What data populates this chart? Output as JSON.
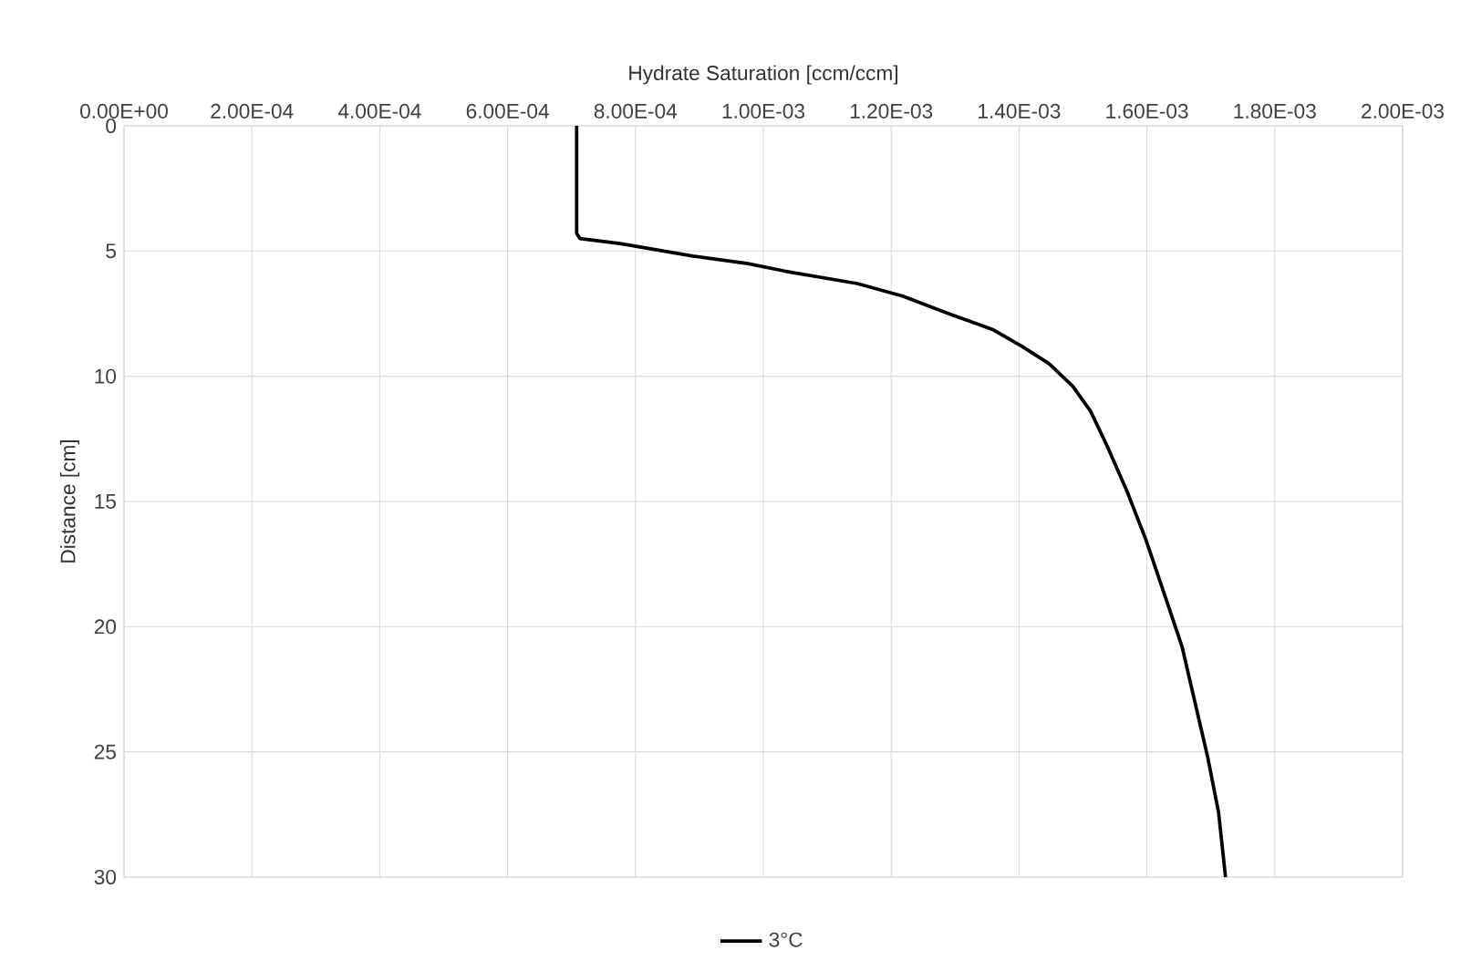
{
  "chart_data": {
    "type": "line",
    "xlabel": "Hydrate Saturation [ccm/ccm]",
    "ylabel": "Distance [cm]",
    "xlim": [
      0,
      0.002
    ],
    "ylim": [
      30,
      0
    ],
    "xticks": [
      {
        "value": 0,
        "label": "0.00E+00"
      },
      {
        "value": 0.0002,
        "label": "2.00E-04"
      },
      {
        "value": 0.0004,
        "label": "4.00E-04"
      },
      {
        "value": 0.0006,
        "label": "6.00E-04"
      },
      {
        "value": 0.0008,
        "label": "8.00E-04"
      },
      {
        "value": 0.001,
        "label": "1.00E-03"
      },
      {
        "value": 0.0012,
        "label": "1.20E-03"
      },
      {
        "value": 0.0014,
        "label": "1.40E-03"
      },
      {
        "value": 0.0016,
        "label": "1.60E-03"
      },
      {
        "value": 0.0018,
        "label": "1.80E-03"
      },
      {
        "value": 0.002,
        "label": "2.00E-03"
      }
    ],
    "yticks": [
      0,
      5,
      10,
      15,
      20,
      25,
      30
    ],
    "grid": true,
    "legend": "bottom",
    "marker": "none",
    "line_style": "solid",
    "series": [
      {
        "name": "3°C",
        "color": "#000000",
        "x": [
          0.000708,
          0.000708,
          0.000713,
          0.000776,
          0.00089,
          0.000976,
          0.001033,
          0.001147,
          0.001218,
          0.00129,
          0.00136,
          0.001404,
          0.001447,
          0.001484,
          0.001512,
          0.001538,
          0.001569,
          0.001598,
          0.001626,
          0.001655,
          0.001675,
          0.001695,
          0.001712,
          0.001723
        ],
        "values": [
          0,
          4.3,
          4.5,
          4.7,
          5.2,
          5.5,
          5.8,
          6.3,
          6.8,
          7.5,
          8.15,
          8.8,
          9.5,
          10.4,
          11.4,
          12.8,
          14.6,
          16.5,
          18.6,
          20.8,
          23.0,
          25.2,
          27.4,
          30
        ]
      }
    ]
  }
}
